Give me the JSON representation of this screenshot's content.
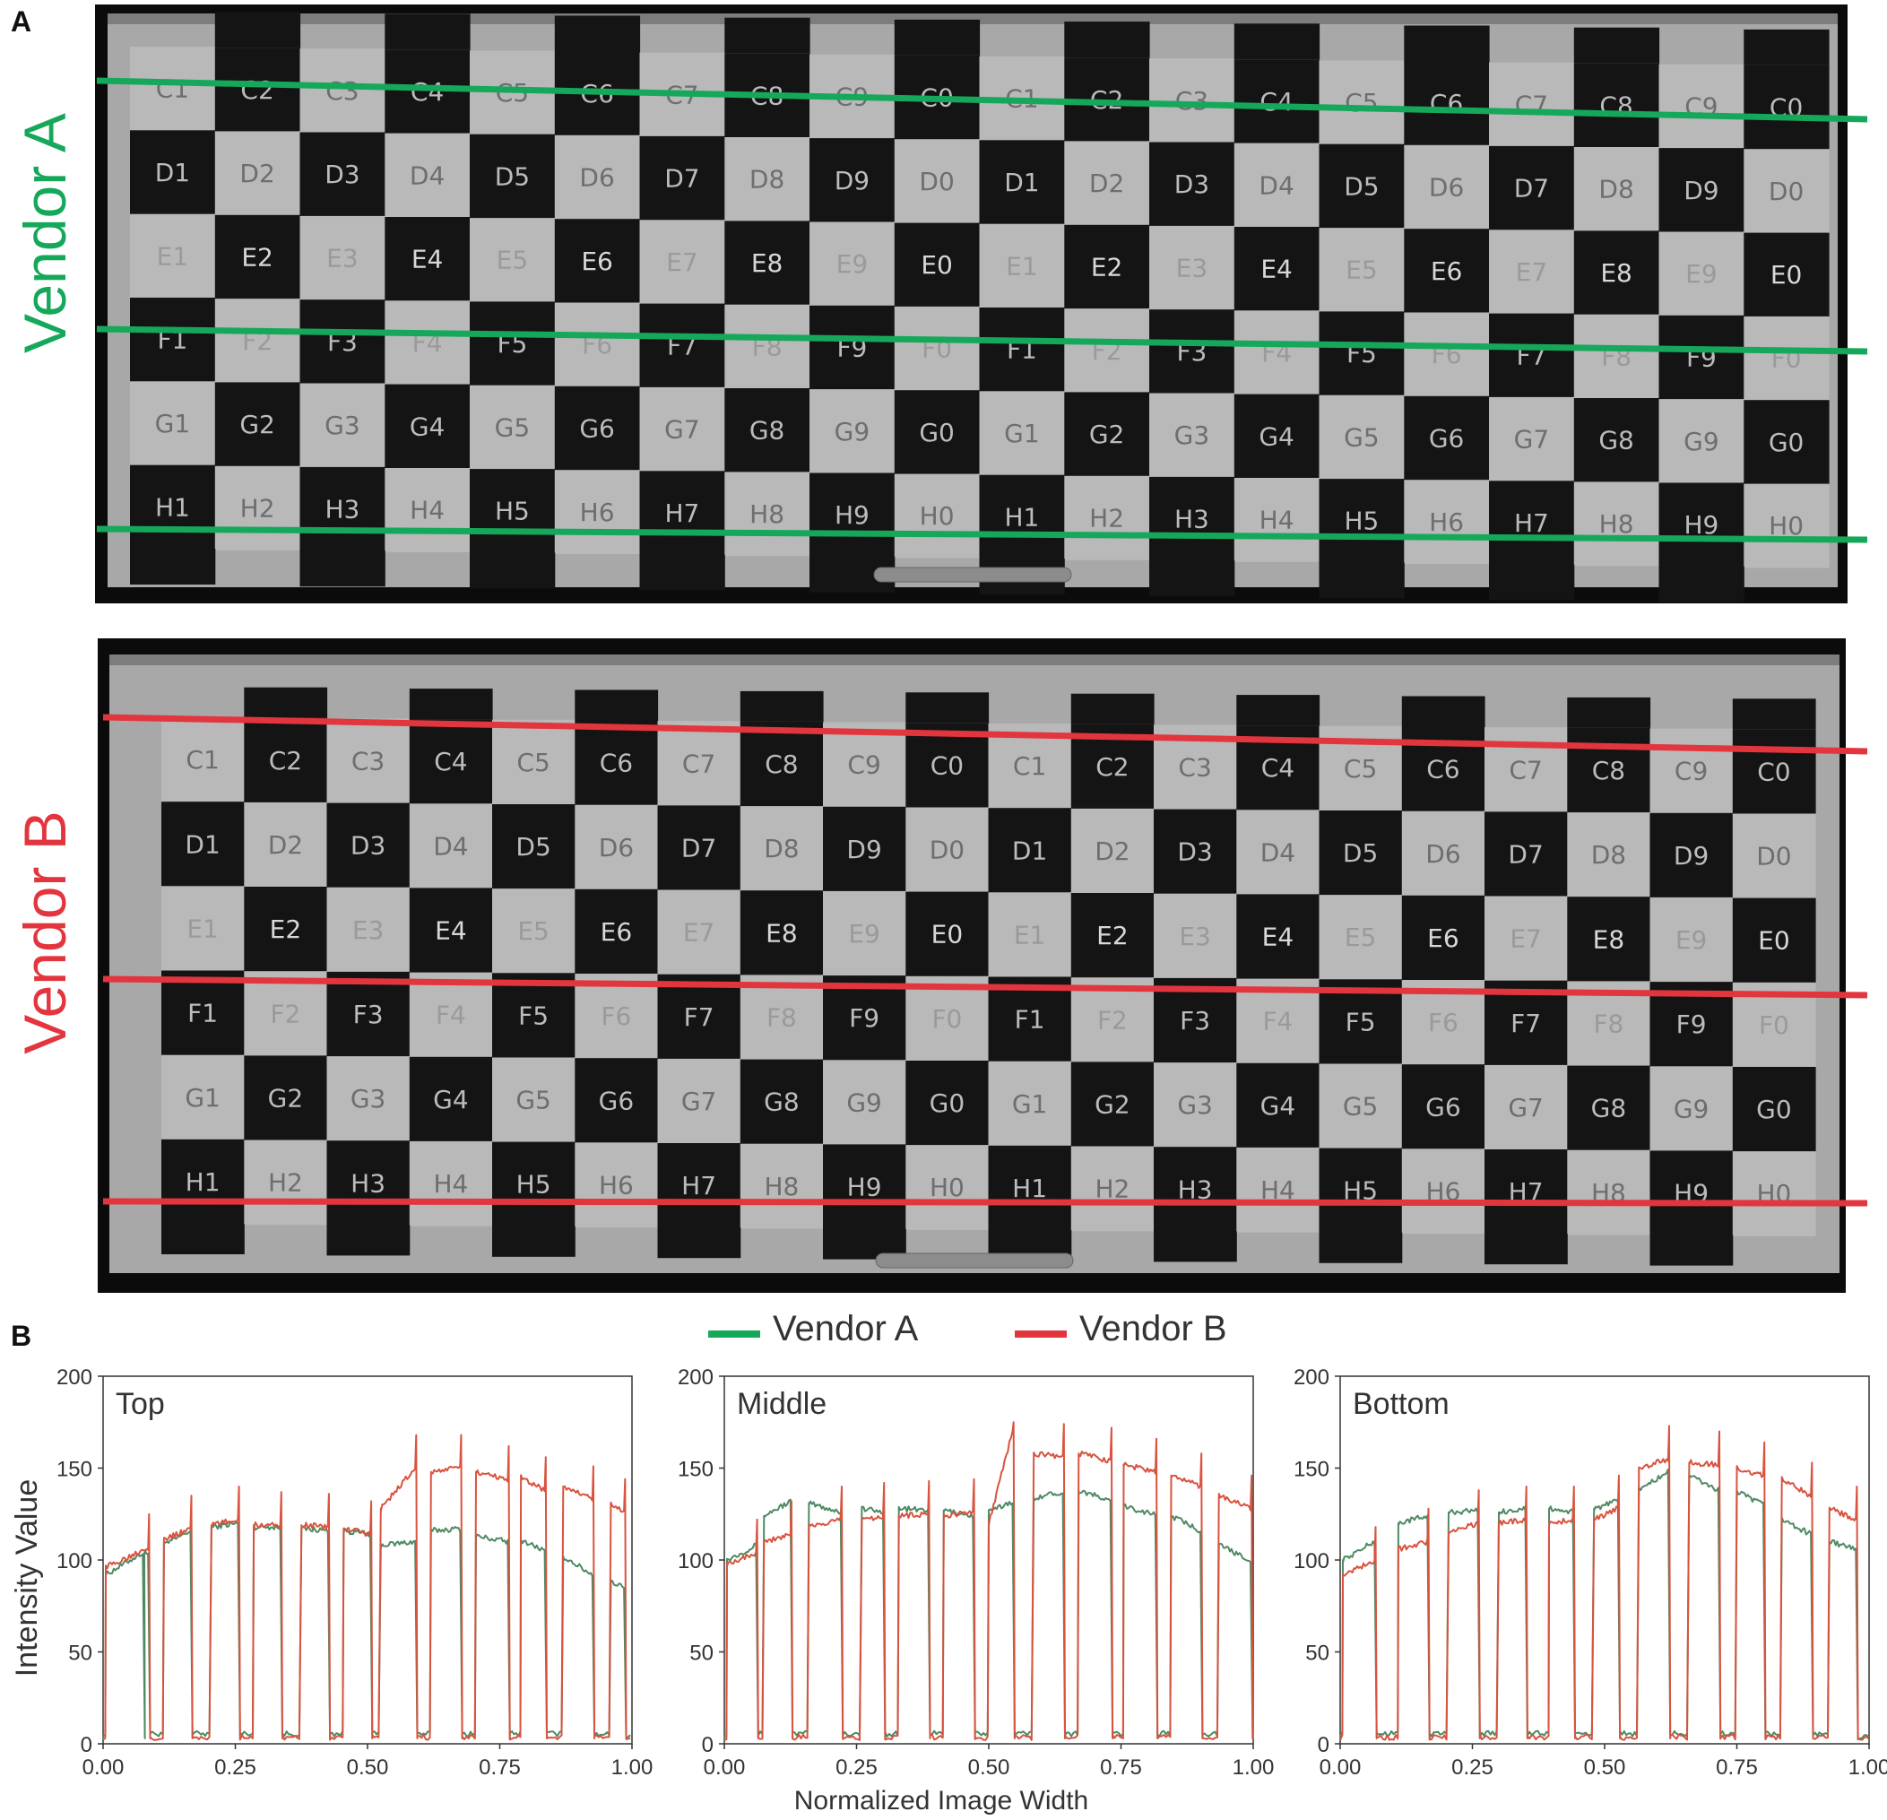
{
  "figure": {
    "panel_a_label": "A",
    "panel_b_label": "B"
  },
  "vendors": [
    {
      "name": "Vendor A",
      "color": "#16a85a"
    },
    {
      "name": "Vendor B",
      "color": "#e2353e"
    }
  ],
  "board": {
    "columns": [
      "1",
      "2",
      "3",
      "4",
      "5",
      "6",
      "7",
      "8",
      "9",
      "0",
      "1",
      "2",
      "3",
      "4",
      "5",
      "6",
      "7",
      "8",
      "9",
      "0"
    ],
    "rows": [
      "C",
      "D",
      "E",
      "F",
      "G",
      "H"
    ]
  },
  "axes": {
    "ylabel": "Intensity Value",
    "xlabel": "Normalized Image Width",
    "yticks": [
      "0",
      "50",
      "100",
      "150",
      "200"
    ],
    "xticks": [
      "0.00",
      "0.25",
      "0.50",
      "0.75",
      "1.00"
    ],
    "ylim": [
      0,
      200
    ],
    "xlim": [
      0,
      1
    ]
  },
  "chart_data": [
    {
      "type": "line",
      "title": "Top",
      "xlabel": "Normalized Image Width",
      "ylabel": "Intensity Value",
      "xlim": [
        0,
        1
      ],
      "ylim": [
        0,
        200
      ],
      "legend": "top-center",
      "series": [
        {
          "name": "Vendor A",
          "color": "#4f8a63",
          "plateaus": [
            [
              0.005,
              0.075,
              92,
              104
            ],
            [
              0.078,
              0.085,
              104,
              104
            ],
            [
              0.115,
              0.165,
              108,
              116
            ],
            [
              0.205,
              0.255,
              118,
              120
            ],
            [
              0.285,
              0.335,
              118,
              118
            ],
            [
              0.375,
              0.425,
              117,
              116
            ],
            [
              0.455,
              0.505,
              116,
              114
            ],
            [
              0.525,
              0.59,
              108,
              110
            ],
            [
              0.62,
              0.675,
              116,
              117
            ],
            [
              0.705,
              0.765,
              113,
              110
            ],
            [
              0.79,
              0.835,
              111,
              105
            ],
            [
              0.87,
              0.925,
              102,
              92
            ],
            [
              0.96,
              0.985,
              88,
              86
            ]
          ]
        },
        {
          "name": "Vendor B",
          "color": "#d9533f",
          "plateaus": [
            [
              0.005,
              0.085,
              96,
              107
            ],
            [
              0.115,
              0.165,
              111,
              117
            ],
            [
              0.205,
              0.255,
              119,
              122
            ],
            [
              0.285,
              0.335,
              119,
              119
            ],
            [
              0.375,
              0.425,
              119,
              118
            ],
            [
              0.455,
              0.505,
              117,
              114
            ],
            [
              0.525,
              0.59,
              128,
              150
            ],
            [
              0.62,
              0.675,
              148,
              150
            ],
            [
              0.705,
              0.765,
              148,
              144
            ],
            [
              0.79,
              0.835,
              145,
              138
            ],
            [
              0.87,
              0.925,
              140,
              133
            ],
            [
              0.96,
              0.985,
              130,
              126
            ]
          ]
        }
      ]
    },
    {
      "type": "line",
      "title": "Middle",
      "xlabel": "Normalized Image Width",
      "ylabel": "Intensity Value",
      "xlim": [
        0,
        1
      ],
      "ylim": [
        0,
        200
      ],
      "series": [
        {
          "name": "Vendor A",
          "color": "#4f8a63",
          "plateaus": [
            [
              0.005,
              0.06,
              100,
              108
            ],
            [
              0.075,
              0.125,
              124,
              132
            ],
            [
              0.16,
              0.22,
              131,
              126
            ],
            [
              0.26,
              0.3,
              128,
              126
            ],
            [
              0.33,
              0.385,
              128,
              127
            ],
            [
              0.415,
              0.47,
              127,
              124
            ],
            [
              0.5,
              0.545,
              126,
              132
            ],
            [
              0.585,
              0.64,
              134,
              137
            ],
            [
              0.67,
              0.73,
              138,
              132
            ],
            [
              0.755,
              0.815,
              129,
              125
            ],
            [
              0.845,
              0.9,
              124,
              116
            ],
            [
              0.935,
              0.995,
              108,
              100
            ]
          ]
        },
        {
          "name": "Vendor B",
          "color": "#d9533f",
          "plateaus": [
            [
              0.005,
              0.06,
              98,
              104
            ],
            [
              0.075,
              0.125,
              110,
              114
            ],
            [
              0.16,
              0.22,
              118,
              122
            ],
            [
              0.26,
              0.3,
              122,
              124
            ],
            [
              0.33,
              0.385,
              124,
              125
            ],
            [
              0.415,
              0.47,
              124,
              126
            ],
            [
              0.5,
              0.545,
              120,
              170
            ],
            [
              0.585,
              0.64,
              158,
              156
            ],
            [
              0.67,
              0.73,
              158,
              154
            ],
            [
              0.755,
              0.815,
              152,
              148
            ],
            [
              0.845,
              0.9,
              146,
              140
            ],
            [
              0.935,
              0.995,
              135,
              128
            ]
          ]
        }
      ]
    },
    {
      "type": "line",
      "title": "Bottom",
      "xlabel": "Normalized Image Width",
      "ylabel": "Intensity Value",
      "xlim": [
        0,
        1
      ],
      "ylim": [
        0,
        200
      ],
      "series": [
        {
          "name": "Vendor A",
          "color": "#4f8a63",
          "plateaus": [
            [
              0.005,
              0.065,
              100,
              110
            ],
            [
              0.11,
              0.165,
              120,
              124
            ],
            [
              0.205,
              0.26,
              126,
              127
            ],
            [
              0.3,
              0.35,
              126,
              128
            ],
            [
              0.395,
              0.44,
              128,
              126
            ],
            [
              0.48,
              0.525,
              128,
              132
            ],
            [
              0.565,
              0.62,
              138,
              148
            ],
            [
              0.66,
              0.715,
              146,
              138
            ],
            [
              0.75,
              0.8,
              137,
              130
            ],
            [
              0.835,
              0.89,
              122,
              114
            ],
            [
              0.925,
              0.975,
              110,
              106
            ]
          ]
        },
        {
          "name": "Vendor B",
          "color": "#d9533f",
          "plateaus": [
            [
              0.005,
              0.065,
              92,
              100
            ],
            [
              0.11,
              0.165,
              106,
              110
            ],
            [
              0.205,
              0.26,
              115,
              120
            ],
            [
              0.3,
              0.35,
              120,
              122
            ],
            [
              0.395,
              0.44,
              120,
              122
            ],
            [
              0.48,
              0.525,
              122,
              128
            ],
            [
              0.565,
              0.62,
              150,
              155
            ],
            [
              0.66,
              0.715,
              153,
              152
            ],
            [
              0.75,
              0.8,
              150,
              146
            ],
            [
              0.835,
              0.89,
              144,
              135
            ],
            [
              0.925,
              0.975,
              128,
              122
            ]
          ]
        }
      ]
    }
  ]
}
